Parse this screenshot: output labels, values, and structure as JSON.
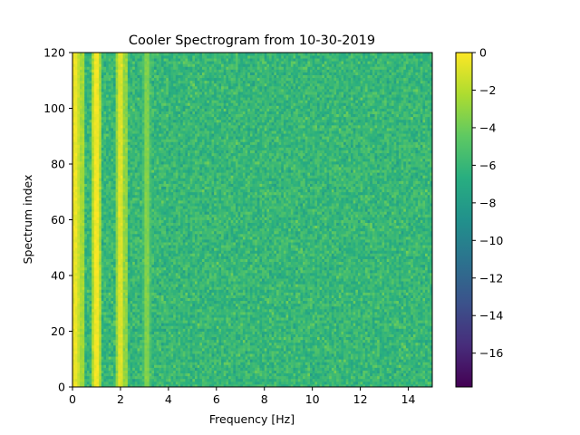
{
  "chart_data": {
    "type": "heatmap",
    "title": "Cooler Spectrogram from 10-30-2019",
    "xlabel": "Frequency [Hz]",
    "ylabel": "Spectrum index",
    "xlim": [
      0,
      15
    ],
    "ylim": [
      0,
      120
    ],
    "x_ticks": [
      "0",
      "2",
      "4",
      "6",
      "8",
      "10",
      "12",
      "14"
    ],
    "y_ticks": [
      "0",
      "20",
      "40",
      "60",
      "80",
      "100",
      "120"
    ],
    "colorbar": {
      "colormap": "viridis",
      "range": [
        -17.8,
        0
      ],
      "ticks": [
        "0",
        "−2",
        "−4",
        "−6",
        "−8",
        "−10",
        "−12",
        "−14",
        "−16"
      ]
    },
    "background_level": -6,
    "features": [
      {
        "kind": "line",
        "frequency_hz": 0.1,
        "level": -0.5
      },
      {
        "kind": "line",
        "frequency_hz": 0.25,
        "level": -1.5
      },
      {
        "kind": "line",
        "frequency_hz": 1.0,
        "level": -0.3
      },
      {
        "kind": "line",
        "frequency_hz": 2.05,
        "level": -1.0
      },
      {
        "kind": "line",
        "frequency_hz": 3.1,
        "level": -3.5
      },
      {
        "kind": "blob",
        "frequency_hz": 1.0,
        "spectrum_index": 95,
        "level": 0
      },
      {
        "kind": "blob",
        "frequency_hz": 1.0,
        "spectrum_index": 60,
        "level": -0.5
      },
      {
        "kind": "blob",
        "frequency_hz": 1.0,
        "spectrum_index": 20,
        "level": -0.5
      }
    ]
  }
}
